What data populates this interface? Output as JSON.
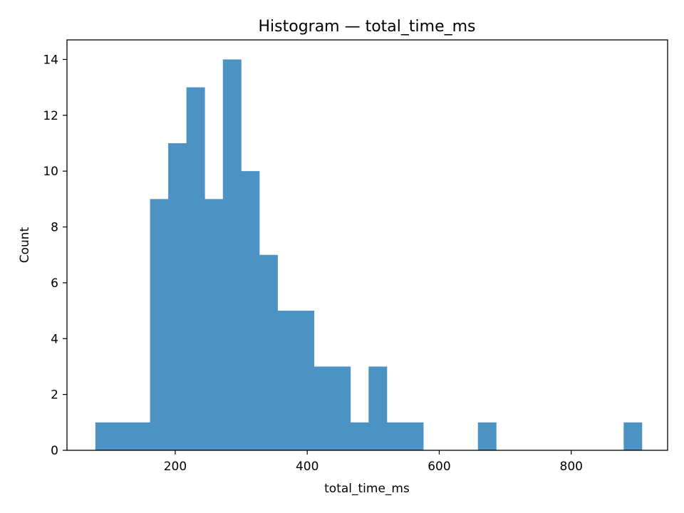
{
  "chart_data": {
    "type": "bar",
    "title": "Histogram — total_time_ms",
    "xlabel": "total_time_ms",
    "ylabel": "Count",
    "xlim": [
      36,
      946
    ],
    "ylim": [
      0,
      14.7
    ],
    "xticks": [
      200,
      400,
      600,
      800
    ],
    "yticks": [
      0,
      2,
      4,
      6,
      8,
      10,
      12,
      14
    ],
    "grid": false,
    "bar_color": "#4c92c3",
    "bins": [
      {
        "start": 79.0,
        "end": 106.6,
        "count": 1
      },
      {
        "start": 106.6,
        "end": 134.2,
        "count": 1
      },
      {
        "start": 134.2,
        "end": 161.8,
        "count": 1
      },
      {
        "start": 161.8,
        "end": 189.4,
        "count": 9
      },
      {
        "start": 189.4,
        "end": 217.0,
        "count": 11
      },
      {
        "start": 217.0,
        "end": 244.6,
        "count": 13
      },
      {
        "start": 244.6,
        "end": 272.2,
        "count": 9
      },
      {
        "start": 272.2,
        "end": 299.8,
        "count": 14
      },
      {
        "start": 299.8,
        "end": 327.4,
        "count": 10
      },
      {
        "start": 327.4,
        "end": 355.0,
        "count": 7
      },
      {
        "start": 355.0,
        "end": 382.6,
        "count": 5
      },
      {
        "start": 382.6,
        "end": 410.2,
        "count": 5
      },
      {
        "start": 410.2,
        "end": 437.8,
        "count": 3
      },
      {
        "start": 437.8,
        "end": 465.4,
        "count": 3
      },
      {
        "start": 465.4,
        "end": 493.0,
        "count": 1
      },
      {
        "start": 493.0,
        "end": 520.6,
        "count": 3
      },
      {
        "start": 520.6,
        "end": 548.2,
        "count": 1
      },
      {
        "start": 548.2,
        "end": 575.8,
        "count": 1
      },
      {
        "start": 575.8,
        "end": 603.4,
        "count": 0
      },
      {
        "start": 603.4,
        "end": 631.0,
        "count": 0
      },
      {
        "start": 631.0,
        "end": 658.6,
        "count": 0
      },
      {
        "start": 658.6,
        "end": 686.2,
        "count": 1
      },
      {
        "start": 686.2,
        "end": 713.8,
        "count": 0
      },
      {
        "start": 713.8,
        "end": 741.4,
        "count": 0
      },
      {
        "start": 741.4,
        "end": 769.0,
        "count": 0
      },
      {
        "start": 769.0,
        "end": 796.6,
        "count": 0
      },
      {
        "start": 796.6,
        "end": 824.2,
        "count": 0
      },
      {
        "start": 824.2,
        "end": 851.8,
        "count": 0
      },
      {
        "start": 851.8,
        "end": 879.4,
        "count": 0
      },
      {
        "start": 879.4,
        "end": 907.0,
        "count": 1
      }
    ]
  }
}
